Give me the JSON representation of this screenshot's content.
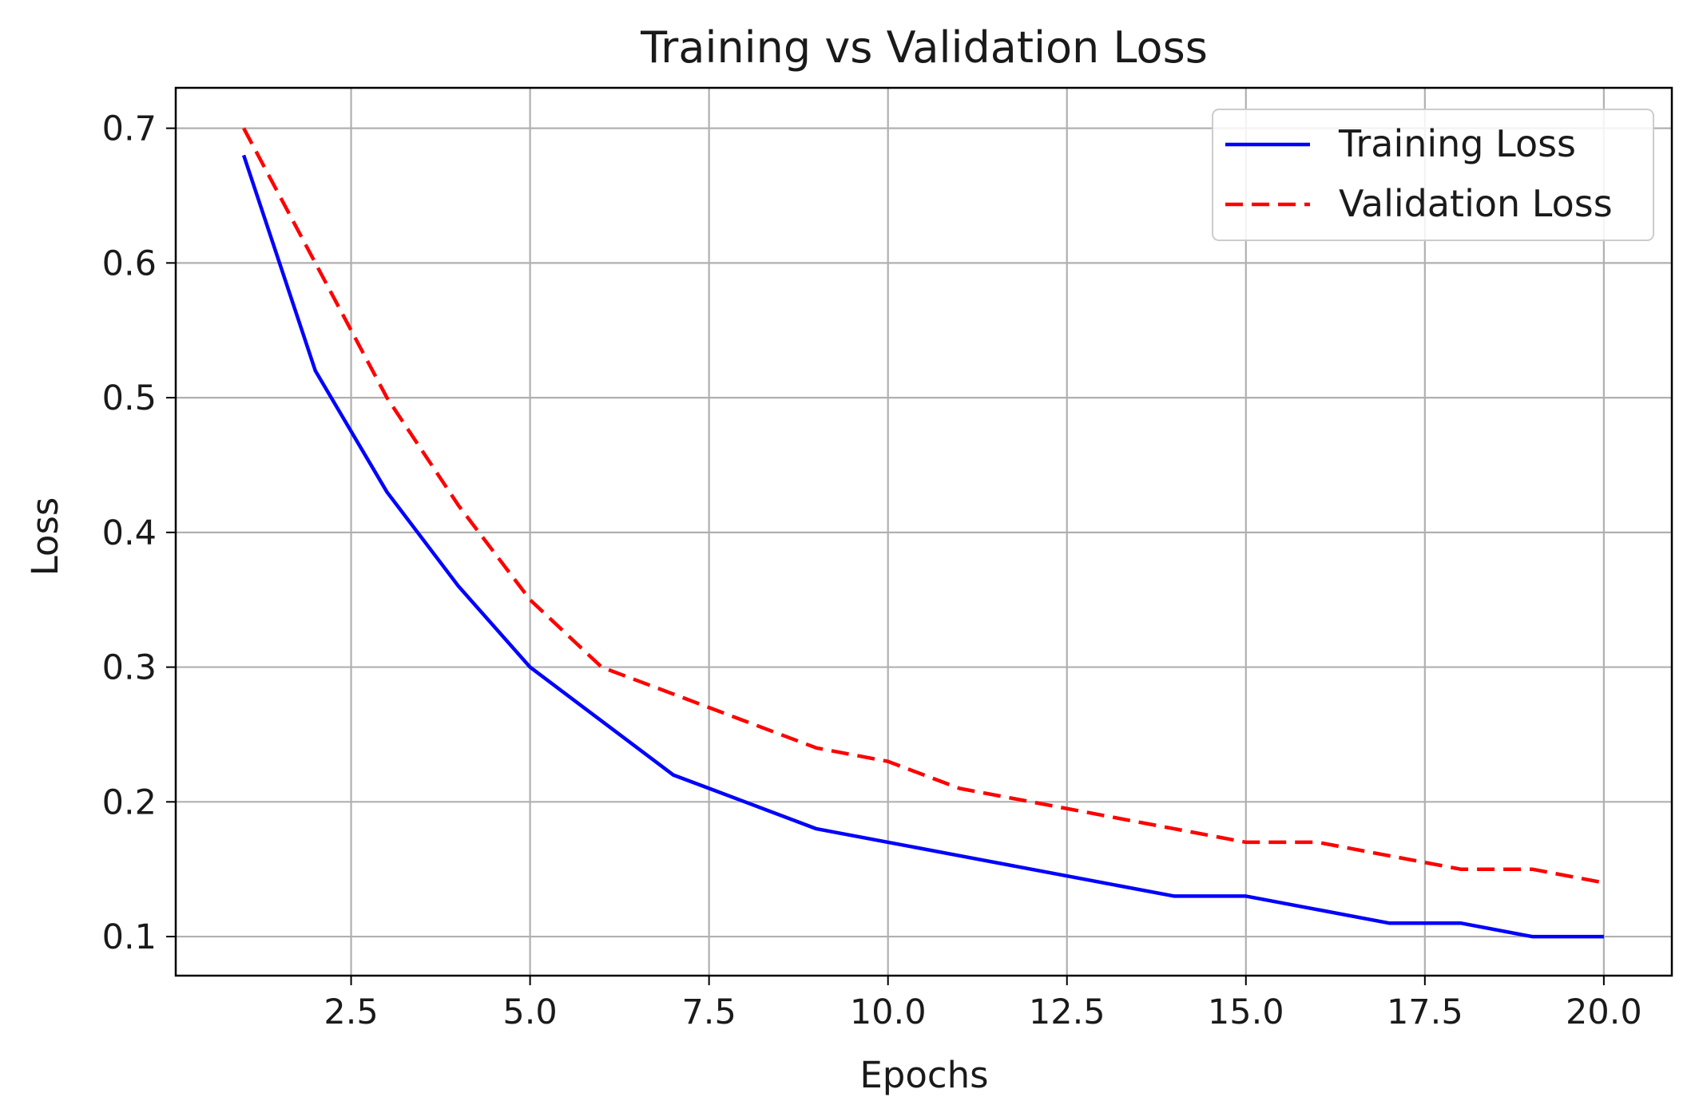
{
  "chart_data": {
    "type": "line",
    "title": "Training vs Validation Loss",
    "xlabel": "Epochs",
    "ylabel": "Loss",
    "xlim": [
      0.05,
      20.95
    ],
    "ylim": [
      0.071,
      0.73
    ],
    "xticks": [
      2.5,
      5.0,
      7.5,
      10.0,
      12.5,
      15.0,
      17.5,
      20.0
    ],
    "xtick_labels": [
      "2.5",
      "5.0",
      "7.5",
      "10.0",
      "12.5",
      "15.0",
      "17.5",
      "20.0"
    ],
    "yticks": [
      0.1,
      0.2,
      0.3,
      0.4,
      0.5,
      0.6,
      0.7
    ],
    "ytick_labels": [
      "0.1",
      "0.2",
      "0.3",
      "0.4",
      "0.5",
      "0.6",
      "0.7"
    ],
    "grid": true,
    "legend_position": "top-right",
    "x": [
      1,
      2,
      3,
      4,
      5,
      6,
      7,
      8,
      9,
      10,
      11,
      12,
      13,
      14,
      15,
      16,
      17,
      18,
      19,
      20
    ],
    "series": [
      {
        "name": "Training Loss",
        "color": "#0000ff",
        "style": "solid",
        "values": [
          0.68,
          0.52,
          0.43,
          0.36,
          0.3,
          0.26,
          0.22,
          0.2,
          0.18,
          0.17,
          0.16,
          0.15,
          0.14,
          0.13,
          0.13,
          0.12,
          0.11,
          0.11,
          0.1,
          0.1
        ]
      },
      {
        "name": "Validation Loss",
        "color": "#ff0000",
        "style": "dashed",
        "values": [
          0.7,
          0.6,
          0.5,
          0.42,
          0.35,
          0.3,
          0.28,
          0.26,
          0.24,
          0.23,
          0.21,
          0.2,
          0.19,
          0.18,
          0.17,
          0.17,
          0.16,
          0.15,
          0.15,
          0.14
        ]
      }
    ]
  }
}
